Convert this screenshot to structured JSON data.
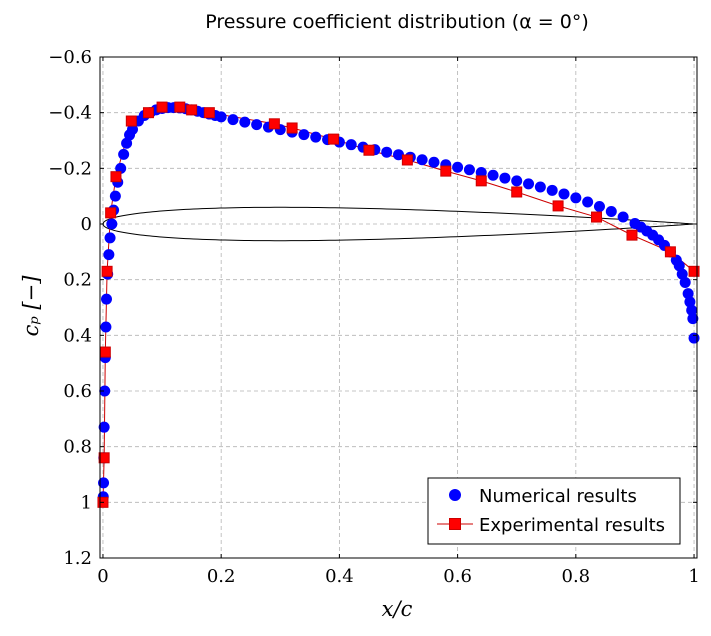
{
  "chart_data": {
    "type": "scatter",
    "title": "Pressure coefficient distribution (α = 0°)",
    "xlabel": "x/c",
    "ylabel": "cₚ [−]",
    "xlim": [
      -0.005,
      1.005
    ],
    "ylim": [
      -0.6,
      1.2
    ],
    "y_inverted": true,
    "grid": true,
    "grid_style": "dashed",
    "xticks": [
      0,
      0.2,
      0.4,
      0.6,
      0.8,
      1
    ],
    "xtick_labels": [
      "0",
      "0.2",
      "0.4",
      "0.6",
      "0.8",
      "1"
    ],
    "yticks": [
      -0.6,
      -0.4,
      -0.2,
      0,
      0.2,
      0.4,
      0.6,
      0.8,
      1,
      1.2
    ],
    "ytick_labels": [
      "−0.6",
      "−0.4",
      "−0.2",
      "0",
      "0.2",
      "0.4",
      "0.6",
      "0.8",
      "1",
      "1.2"
    ],
    "legend_position": "bottom-right",
    "series": [
      {
        "name": "Numerical results",
        "marker": "circle",
        "color": "#0000ff",
        "x": [
          0.0005,
          0.001,
          0.0015,
          0.002,
          0.003,
          0.004,
          0.005,
          0.006,
          0.008,
          0.01,
          0.012,
          0.015,
          0.018,
          0.021,
          0.025,
          0.03,
          0.035,
          0.04,
          0.045,
          0.05,
          0.06,
          0.07,
          0.08,
          0.09,
          0.1,
          0.11,
          0.12,
          0.13,
          0.14,
          0.15,
          0.16,
          0.17,
          0.18,
          0.19,
          0.2,
          0.22,
          0.24,
          0.26,
          0.28,
          0.3,
          0.32,
          0.34,
          0.36,
          0.38,
          0.4,
          0.42,
          0.44,
          0.46,
          0.48,
          0.5,
          0.52,
          0.54,
          0.56,
          0.58,
          0.6,
          0.62,
          0.64,
          0.66,
          0.68,
          0.7,
          0.72,
          0.74,
          0.76,
          0.78,
          0.8,
          0.82,
          0.84,
          0.86,
          0.88,
          0.9,
          0.91,
          0.92,
          0.93,
          0.94,
          0.95,
          0.96,
          0.97,
          0.975,
          0.98,
          0.985,
          0.99,
          0.993,
          0.996,
          0.998,
          1.0
        ],
        "y": [
          0.98,
          0.93,
          0.84,
          0.73,
          0.6,
          0.48,
          0.37,
          0.27,
          0.18,
          0.11,
          0.05,
          0.0,
          -0.05,
          -0.1,
          -0.15,
          -0.2,
          -0.25,
          -0.29,
          -0.32,
          -0.34,
          -0.37,
          -0.39,
          -0.4,
          -0.41,
          -0.415,
          -0.418,
          -0.418,
          -0.417,
          -0.414,
          -0.41,
          -0.405,
          -0.4,
          -0.395,
          -0.39,
          -0.385,
          -0.375,
          -0.366,
          -0.357,
          -0.348,
          -0.339,
          -0.33,
          -0.321,
          -0.312,
          -0.303,
          -0.294,
          -0.285,
          -0.276,
          -0.267,
          -0.258,
          -0.249,
          -0.24,
          -0.231,
          -0.222,
          -0.213,
          -0.204,
          -0.195,
          -0.185,
          -0.175,
          -0.165,
          -0.155,
          -0.144,
          -0.133,
          -0.121,
          -0.108,
          -0.094,
          -0.079,
          -0.063,
          -0.045,
          -0.025,
          -0.002,
          0.011,
          0.025,
          0.04,
          0.057,
          0.077,
          0.1,
          0.13,
          0.15,
          0.18,
          0.21,
          0.25,
          0.28,
          0.31,
          0.34,
          0.41
        ]
      },
      {
        "name": "Experimental results",
        "marker": "square",
        "line": true,
        "color": "#ff0000",
        "edge_color": "#cc0000",
        "x": [
          0.0,
          0.002,
          0.004,
          0.007,
          0.013,
          0.022,
          0.048,
          0.077,
          0.1,
          0.13,
          0.15,
          0.18,
          0.29,
          0.32,
          0.39,
          0.45,
          0.515,
          0.58,
          0.64,
          0.7,
          0.77,
          0.835,
          0.895,
          0.96,
          1.0
        ],
        "y": [
          1.0,
          0.84,
          0.46,
          0.17,
          -0.04,
          -0.17,
          -0.37,
          -0.4,
          -0.42,
          -0.42,
          -0.41,
          -0.4,
          -0.36,
          -0.345,
          -0.305,
          -0.265,
          -0.23,
          -0.19,
          -0.155,
          -0.115,
          -0.065,
          -0.025,
          0.04,
          0.1,
          0.17
        ]
      }
    ],
    "airfoil": {
      "name": "Airfoil profile",
      "thickness_ratio": 0.12,
      "type": "NACA 0012"
    }
  }
}
